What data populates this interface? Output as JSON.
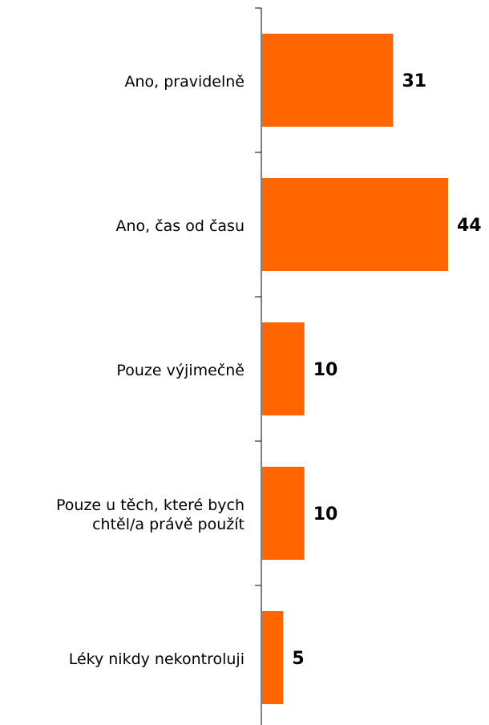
{
  "chart_data": {
    "type": "barh",
    "categories": [
      "Ano, pravidelně",
      "Ano, čas od času",
      "Pouze výjimečně",
      "Pouze u těch, které bych\nchtěl/a právě použít",
      "Léky nikdy nekontroluji"
    ],
    "values": [
      31,
      44,
      10,
      10,
      5
    ],
    "color": "#ff6600"
  }
}
